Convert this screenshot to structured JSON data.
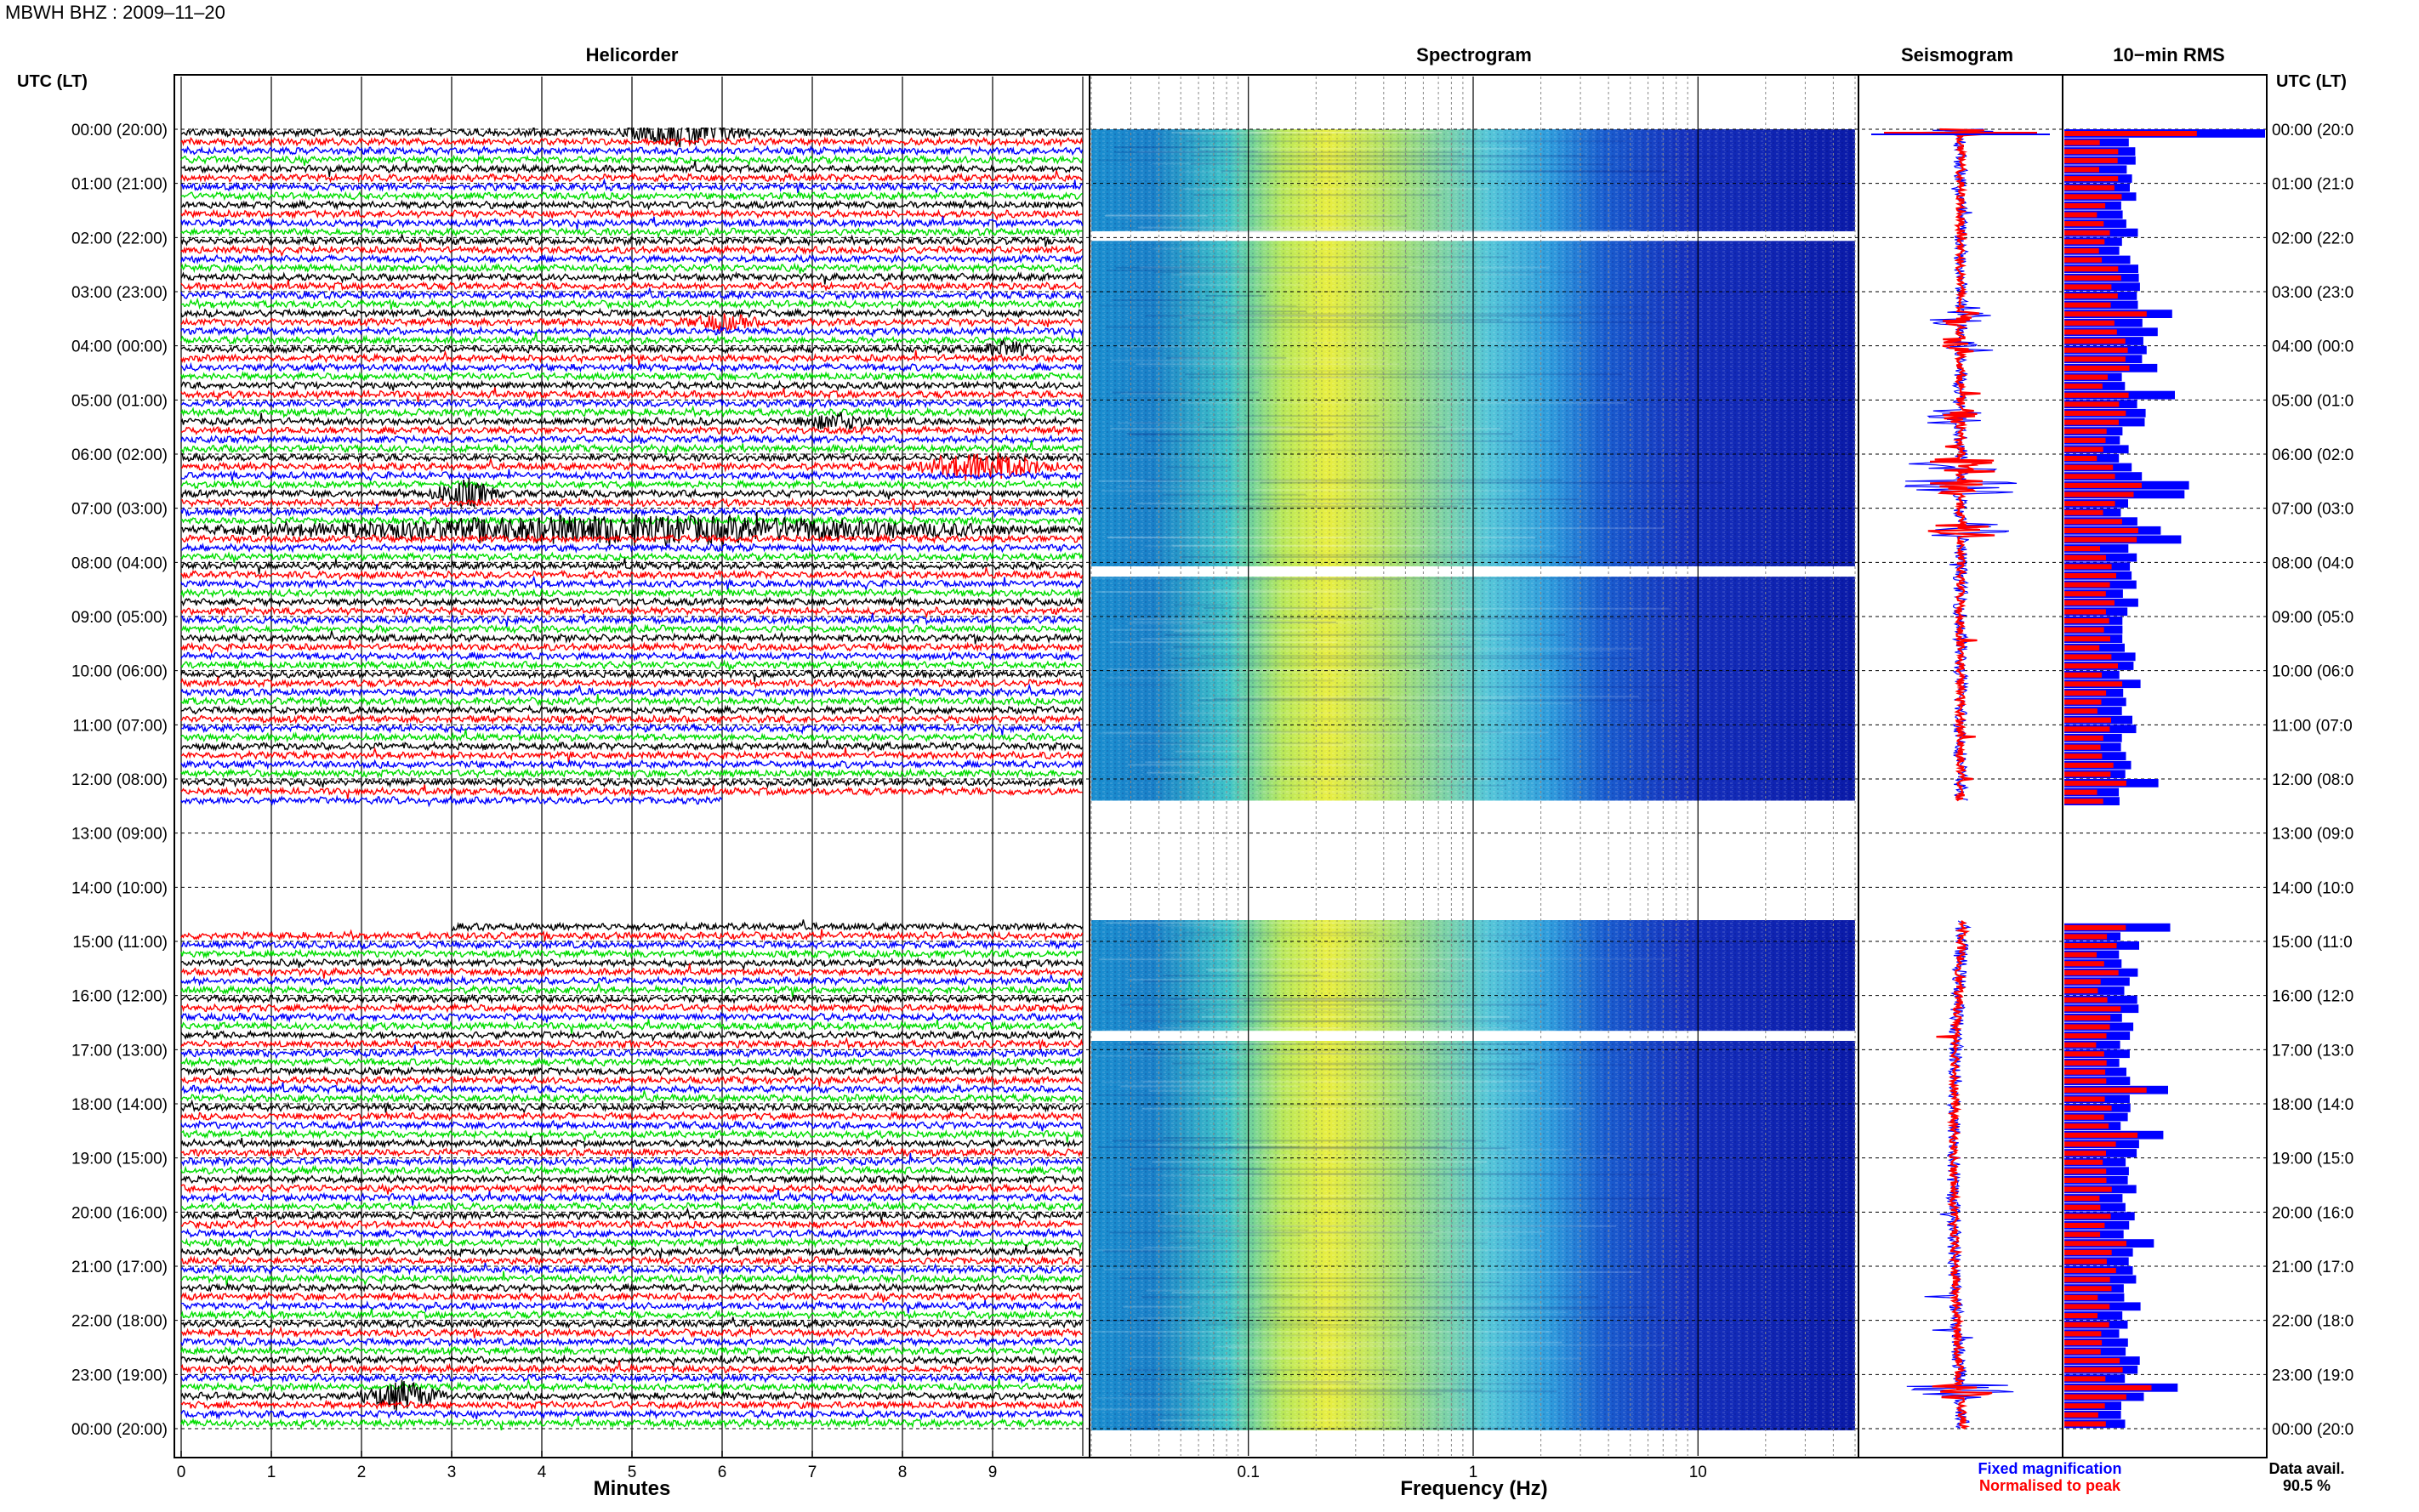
{
  "header": {
    "station_date": "MBWH BHZ : 2009–11–20"
  },
  "panels": {
    "helicorder": "Helicorder",
    "spectrogram": "Spectrogram",
    "seismogram": "Seismogram",
    "rms": "10−min RMS"
  },
  "axes": {
    "left_header": "UTC (LT)",
    "right_header": "UTC (LT)",
    "helicorder_xlabel": "Minutes",
    "spectrogram_xlabel": "Frequency (Hz)",
    "minute_ticks": [
      "0",
      "1",
      "2",
      "3",
      "4",
      "5",
      "6",
      "7",
      "8",
      "9"
    ],
    "frequency_ticks": [
      "0.1",
      "1",
      "10"
    ]
  },
  "hour_labels": [
    "00:00 (20:00)",
    "01:00 (21:00)",
    "02:00 (22:00)",
    "03:00 (23:00)",
    "04:00 (00:00)",
    "05:00 (01:00)",
    "06:00 (02:00)",
    "07:00 (03:00)",
    "08:00 (04:00)",
    "09:00 (05:00)",
    "10:00 (06:00)",
    "11:00 (07:00)",
    "12:00 (08:00)",
    "13:00 (09:00)",
    "14:00 (10:00)",
    "15:00 (11:00)",
    "16:00 (12:00)",
    "17:00 (13:00)",
    "18:00 (14:00)",
    "19:00 (15:00)",
    "20:00 (16:00)",
    "21:00 (17:00)",
    "22:00 (18:00)",
    "23:00 (19:00)",
    "00:00 (20:00)"
  ],
  "right_hour_labels": [
    "00:00 (20:0",
    "01:00 (21:0",
    "02:00 (22:0",
    "03:00 (23:0",
    "04:00 (00:0",
    "05:00 (01:0",
    "06:00 (02:0",
    "07:00 (03:0",
    "08:00 (04:0",
    "09:00 (05:0",
    "10:00 (06:0",
    "11:00 (07:0",
    "12:00 (08:0",
    "13:00 (09:0",
    "14:00 (10:0",
    "15:00 (11:0",
    "16:00 (12:0",
    "17:00 (13:0",
    "18:00 (14:0",
    "19:00 (15:0",
    "20:00 (16:0",
    "21:00 (17:0",
    "22:00 (18:0",
    "23:00 (19:0",
    "00:00 (20:0"
  ],
  "legend": {
    "fixed": "Fixed magnification",
    "normalised": "Normalised to peak",
    "fixed_color": "#0000ff",
    "normalised_color": "#ff0000"
  },
  "availability": {
    "label": "Data avail.",
    "value": "90.5 %"
  },
  "colors": {
    "trace_cycle": [
      "#000000",
      "#ff0000",
      "#0000ff",
      "#00dd00"
    ]
  },
  "chart_data": {
    "type": "helicorder",
    "x_range_minutes": [
      0,
      10
    ],
    "frequency_range_hz": [
      0.02,
      50
    ],
    "frequency_scale": "log",
    "grid": true,
    "gaps_utc_hours": [
      [
        12.4,
        14.6
      ]
    ],
    "spectrogram_dropouts_utc_hours": [
      2.0,
      8.2,
      16.7
    ],
    "events": [
      {
        "utc_hour": 0.0,
        "minute_start": 4.8,
        "minute_end": 6.4,
        "amplitude": "large"
      },
      {
        "utc_hour": 3.5,
        "minute_start": 5.5,
        "minute_end": 6.5,
        "amplitude": "medium"
      },
      {
        "utc_hour": 4.0,
        "minute_start": 8.8,
        "minute_end": 9.5,
        "amplitude": "medium"
      },
      {
        "utc_hour": 5.3,
        "minute_start": 6.7,
        "minute_end": 7.8,
        "amplitude": "medium"
      },
      {
        "utc_hour": 6.2,
        "minute_start": 8.0,
        "minute_end": 9.8,
        "amplitude": "large"
      },
      {
        "utc_hour": 6.6,
        "minute_start": 2.7,
        "minute_end": 3.6,
        "amplitude": "large"
      },
      {
        "utc_hour": 7.4,
        "minute_start": 0.0,
        "minute_end": 10.0,
        "amplitude": "large"
      },
      {
        "utc_hour": 23.3,
        "minute_start": 1.9,
        "minute_end": 3.0,
        "amplitude": "large"
      }
    ],
    "rms_blocks_utc_hours": [
      [
        0,
        12.4
      ],
      [
        14.6,
        24
      ]
    ]
  }
}
